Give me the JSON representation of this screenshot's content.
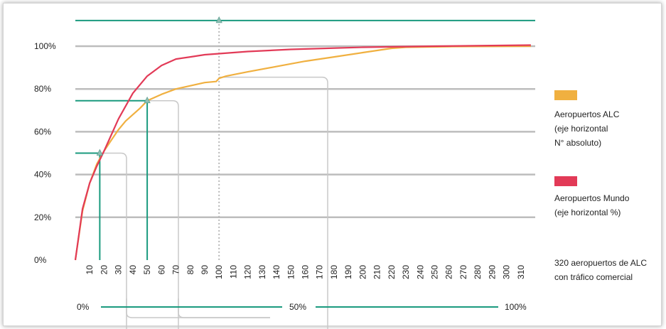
{
  "chart_data": {
    "type": "line",
    "y_ticks": [
      "0%",
      "20%",
      "40%",
      "60%",
      "80%",
      "100%"
    ],
    "y_values": [
      0,
      20,
      40,
      60,
      80,
      100
    ],
    "ylim": [
      0,
      112
    ],
    "x_ticks": [
      10,
      20,
      30,
      40,
      50,
      60,
      70,
      80,
      90,
      100,
      110,
      120,
      130,
      140,
      150,
      160,
      170,
      180,
      190,
      200,
      210,
      220,
      230,
      240,
      250,
      260,
      270,
      280,
      290,
      300,
      310
    ],
    "xlim": [
      0,
      320
    ],
    "grid": "horizontal",
    "series": [
      {
        "name": "Aeropuertos ALC (eje horizontal N° absoluto)",
        "color": "#f0b040",
        "x": [
          0,
          5,
          10,
          15,
          20,
          25,
          30,
          35,
          40,
          45,
          50,
          55,
          60,
          70,
          80,
          90,
          98,
          100,
          105,
          120,
          140,
          160,
          180,
          200,
          220,
          230,
          260,
          290,
          317
        ],
        "y": [
          0,
          23,
          36,
          45,
          51,
          56,
          61,
          65,
          68,
          71,
          74.5,
          76,
          77.5,
          80,
          81.5,
          83,
          83.5,
          85,
          86,
          88,
          90.5,
          93,
          95,
          97,
          99,
          99.5,
          99.8,
          99.9,
          100
        ]
      },
      {
        "name": "Aeropuertos Mundo (eje horizontal %)",
        "color": "#e23a57",
        "x": [
          0,
          5,
          10,
          15,
          20,
          30,
          40,
          50,
          60,
          70,
          80,
          90,
          100,
          120,
          150,
          200,
          250,
          317
        ],
        "y": [
          0,
          24,
          36,
          44,
          51,
          66,
          78,
          86,
          91,
          94,
          95,
          96,
          96.5,
          97.5,
          98.5,
          99.5,
          100,
          100.5
        ]
      }
    ],
    "markers": [
      {
        "x": 17,
        "y": 50
      },
      {
        "x": 50,
        "y": 74.5
      },
      {
        "x": 100,
        "y": 112
      }
    ],
    "percent_axis": [
      "0%",
      "50%",
      "100%"
    ],
    "legend": [
      {
        "label_lines": [
          "Aeropuertos ALC",
          "(eje horizontal",
          "N° absoluto)"
        ],
        "color": "#f0b040"
      },
      {
        "label_lines": [
          "Aeropuertos Mundo",
          "(eje horizontal %)"
        ],
        "color": "#e23a57"
      }
    ],
    "note_lines": [
      "320 aeropuertos de ALC",
      "con tráfico comercial"
    ]
  },
  "colors": {
    "teal": "#1a9a7e",
    "grid": "#bdbdbd",
    "guide": "#c8c8c8"
  }
}
